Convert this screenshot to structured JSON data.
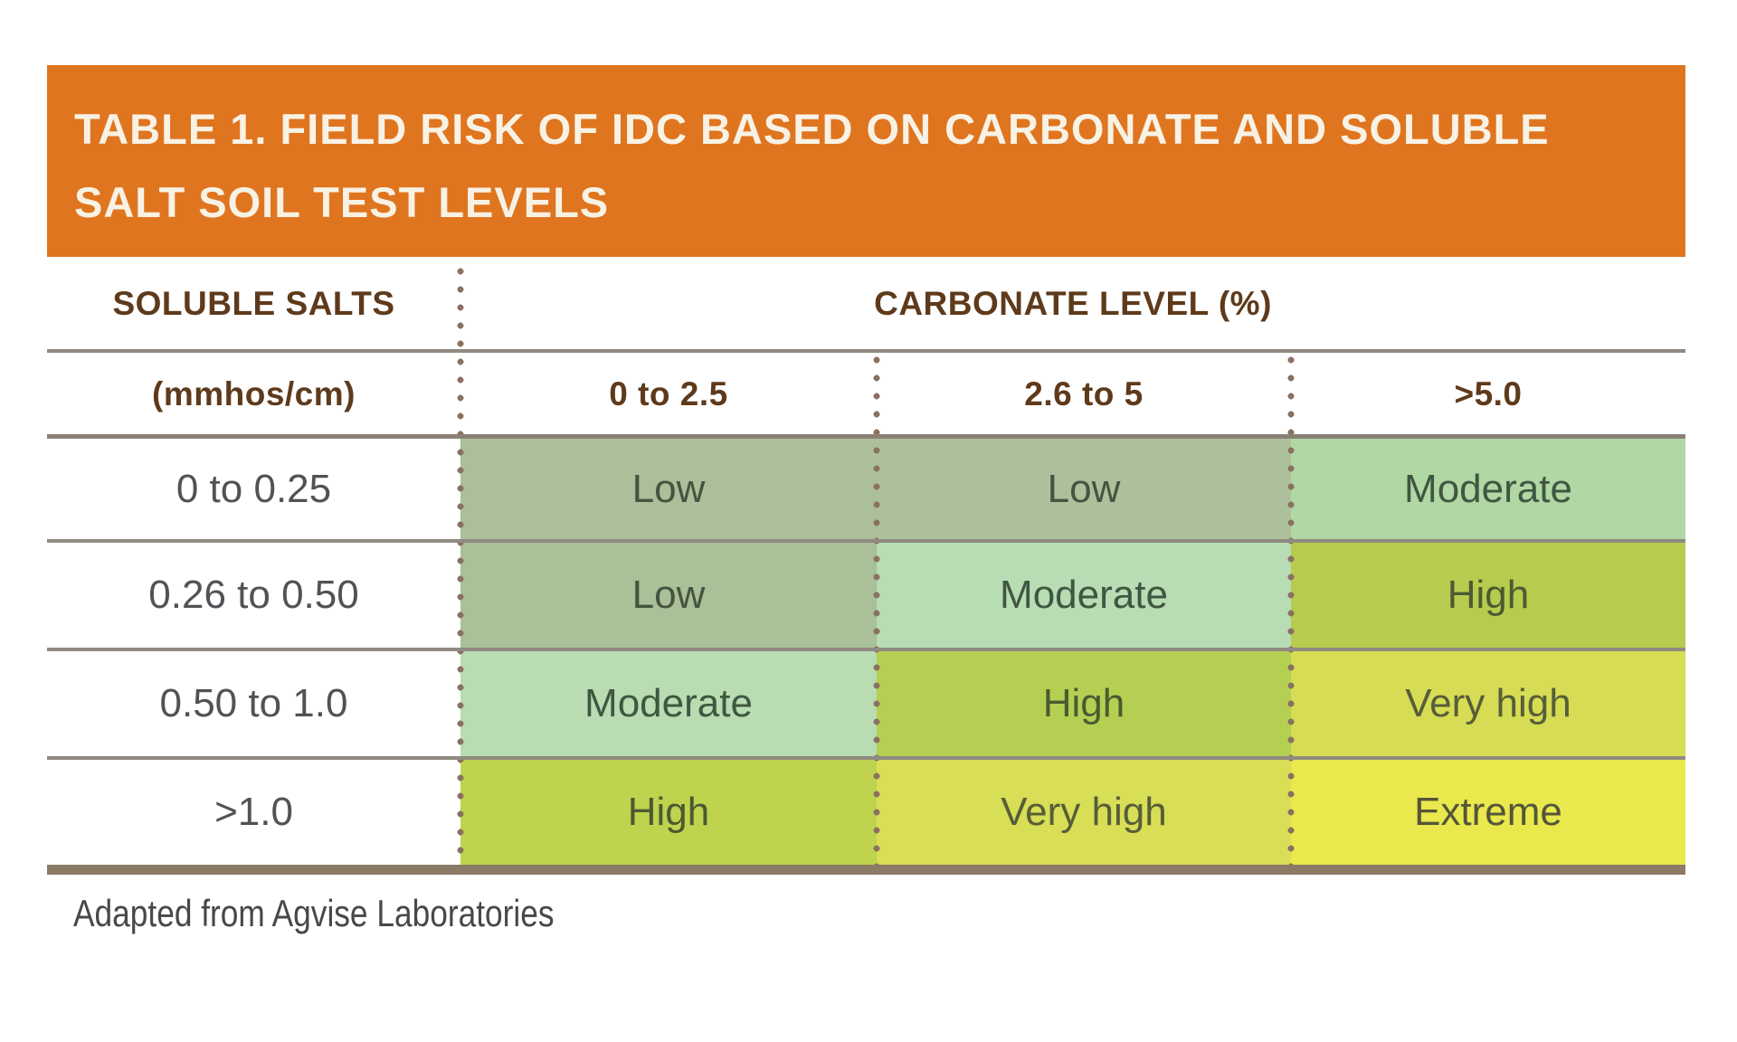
{
  "title": {
    "line1": "TABLE 1. FIELD RISK OF IDC BASED ON CARBONATE AND SOLUBLE",
    "line2": "SALT SOIL TEST LEVELS"
  },
  "table": {
    "row_group_header": "SOLUBLE SALTS",
    "row_unit": "(mmhos/cm)",
    "col_group_header": "CARBONATE LEVEL (%)",
    "col_headers": [
      "0 to 2.5",
      "2.6 to 5",
      ">5.0"
    ],
    "rows": [
      {
        "label": "0 to 0.25",
        "cells": [
          {
            "text": "Low",
            "bg": "#aabf9a",
            "fg": "#44543f"
          },
          {
            "text": "Low",
            "bg": "#acc09c",
            "fg": "#44543f"
          },
          {
            "text": "Moderate",
            "bg": "#b1d7a4",
            "fg": "#3f5741"
          }
        ]
      },
      {
        "label": "0.26 to 0.50",
        "cells": [
          {
            "text": "Low",
            "bg": "#a9c098",
            "fg": "#44543f"
          },
          {
            "text": "Moderate",
            "bg": "#b8dcb4",
            "fg": "#3f5741"
          },
          {
            "text": "High",
            "bg": "#b7cb4e",
            "fg": "#4c5a31"
          }
        ]
      },
      {
        "label": "0.50 to 1.0",
        "cells": [
          {
            "text": "Moderate",
            "bg": "#b9dcb3",
            "fg": "#3f5741"
          },
          {
            "text": "High",
            "bg": "#b4cf52",
            "fg": "#4c5a31"
          },
          {
            "text": "Very high",
            "bg": "#d6dc54",
            "fg": "#575e38"
          }
        ]
      },
      {
        "label": ">1.0",
        "cells": [
          {
            "text": "High",
            "bg": "#bfd34f",
            "fg": "#4c5a31"
          },
          {
            "text": "Very high",
            "bg": "#d8de55",
            "fg": "#575e38"
          },
          {
            "text": "Extreme",
            "bg": "#e9e84c",
            "fg": "#55553a"
          }
        ]
      }
    ]
  },
  "footer": {
    "credit": "Adapted from Agvise Laboratories"
  },
  "colors": {
    "page_bg": "#ffffff",
    "banner_bg": "#e0751f",
    "banner_text": "#f8f2e5",
    "header_text": "#5e3a1b",
    "label_text": "#515256",
    "credit_text": "#47484a",
    "grid_line": "#908a80",
    "grid_line_heavy": "#8a8076",
    "bottom_border": "#8b7b66",
    "dot": "#8a7162"
  },
  "chart_data": {
    "type": "table",
    "title": "TABLE 1. FIELD RISK OF IDC BASED ON CARBONATE AND SOLUBLE SALT SOIL TEST LEVELS",
    "row_variable": "SOLUBLE SALTS (mmhos/cm)",
    "col_variable": "CARBONATE LEVEL (%)",
    "columns": [
      "0 to 2.5",
      "2.6 to 5",
      ">5.0"
    ],
    "rows": [
      "0 to 0.25",
      "0.26 to 0.50",
      "0.50 to 1.0",
      ">1.0"
    ],
    "values": [
      [
        "Low",
        "Low",
        "Moderate"
      ],
      [
        "Low",
        "Moderate",
        "High"
      ],
      [
        "Moderate",
        "High",
        "Very high"
      ],
      [
        "High",
        "Very high",
        "Extreme"
      ]
    ],
    "risk_scale_low_to_high": [
      "Low",
      "Moderate",
      "High",
      "Very high",
      "Extreme"
    ],
    "source": "Adapted from Agvise Laboratories"
  }
}
